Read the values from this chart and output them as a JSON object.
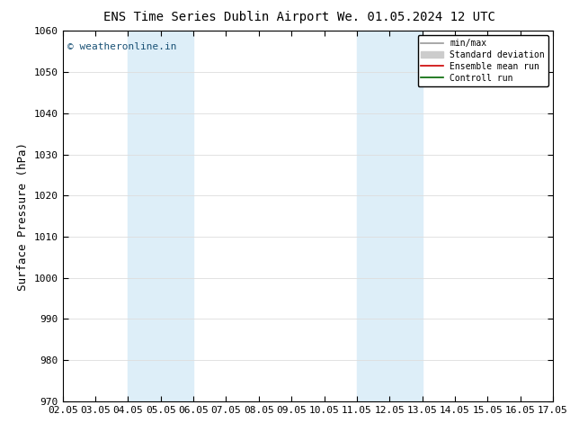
{
  "title_left": "ENS Time Series Dublin Airport",
  "title_right": "We. 01.05.2024 12 UTC",
  "ylabel": "Surface Pressure (hPa)",
  "ylim": [
    970,
    1060
  ],
  "yticks": [
    970,
    980,
    990,
    1000,
    1010,
    1020,
    1030,
    1040,
    1050,
    1060
  ],
  "xlim_dates": [
    "02.05",
    "03.05",
    "04.05",
    "05.05",
    "06.05",
    "07.05",
    "08.05",
    "09.05",
    "10.05",
    "11.05",
    "12.05",
    "13.05",
    "14.05",
    "15.05",
    "16.05",
    "17.05"
  ],
  "xtick_positions": [
    0,
    1,
    2,
    3,
    4,
    5,
    6,
    7,
    8,
    9,
    10,
    11,
    12,
    13,
    14,
    15
  ],
  "shaded_regions": [
    {
      "x_start": 2,
      "x_end": 4,
      "color": "#ddeef8"
    },
    {
      "x_start": 9,
      "x_end": 11,
      "color": "#ddeef8"
    }
  ],
  "watermark": "© weatheronline.in",
  "watermark_color": "#1a5276",
  "legend_items": [
    {
      "label": "min/max",
      "color": "#999999",
      "lw": 1.2,
      "type": "line"
    },
    {
      "label": "Standard deviation",
      "color": "#cccccc",
      "lw": 8,
      "type": "patch"
    },
    {
      "label": "Ensemble mean run",
      "color": "#cc0000",
      "lw": 1.2,
      "type": "line"
    },
    {
      "label": "Controll run",
      "color": "#006600",
      "lw": 1.2,
      "type": "line"
    }
  ],
  "bg_color": "#ffffff",
  "grid_color": "#dddddd",
  "spine_color": "#000000",
  "title_fontsize": 10,
  "axis_fontsize": 8,
  "ylabel_fontsize": 9
}
